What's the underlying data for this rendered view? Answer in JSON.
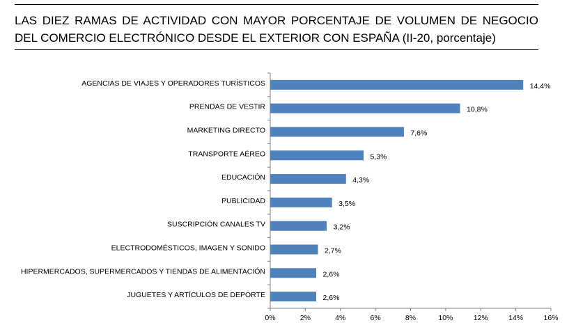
{
  "header": {
    "title_line1": "LAS DIEZ RAMAS DE ACTIVIDAD CON MAYOR PORCENTAJE DE VOLUMEN DE NEGOCIO",
    "title_line2": "DEL COMERCIO ELECTRÓNICO DESDE EL EXTERIOR CON ESPAÑA (II-20, porcentaje)"
  },
  "chart_data": {
    "type": "bar",
    "orientation": "horizontal",
    "title": "LAS DIEZ RAMAS DE ACTIVIDAD CON MAYOR PORCENTAJE DE VOLUMEN DE NEGOCIO DEL COMERCIO ELECTRÓNICO DESDE EL EXTERIOR CON ESPAÑA (II-20, porcentaje)",
    "categories": [
      "AGENCIAS DE VIAJES Y OPERADORES TURÍSTICOS",
      "PRENDAS DE VESTIR",
      "MARKETING DIRECTO",
      "TRANSPORTE AÉREO",
      "EDUCACIÓN",
      "PUBLICIDAD",
      "SUSCRIPCIÓN CANALES TV",
      "ELECTRODOMÉSTICOS,  IMAGEN Y SONIDO",
      "HIPERMERCADOS, SUPERMERCADOS Y TIENDAS DE ALIMENTACIÓN",
      "JUGUETES Y ARTÍCULOS DE DEPORTE"
    ],
    "values": [
      14.4,
      10.8,
      7.6,
      5.3,
      4.3,
      3.5,
      3.2,
      2.7,
      2.6,
      2.6
    ],
    "value_labels": [
      "14,4%",
      "10,8%",
      "7,6%",
      "5,3%",
      "4,3%",
      "3,5%",
      "3,2%",
      "2,7%",
      "2,6%",
      "2,6%"
    ],
    "xlim": [
      0,
      16
    ],
    "xticks": [
      0,
      2,
      4,
      6,
      8,
      10,
      12,
      14,
      16
    ],
    "xtick_labels": [
      "0%",
      "2%",
      "4%",
      "6%",
      "8%",
      "10%",
      "12%",
      "14%",
      "16%"
    ],
    "xlabel": "",
    "ylabel": "",
    "grid": false,
    "legend": "none",
    "bar_color": "#4f81bd"
  }
}
